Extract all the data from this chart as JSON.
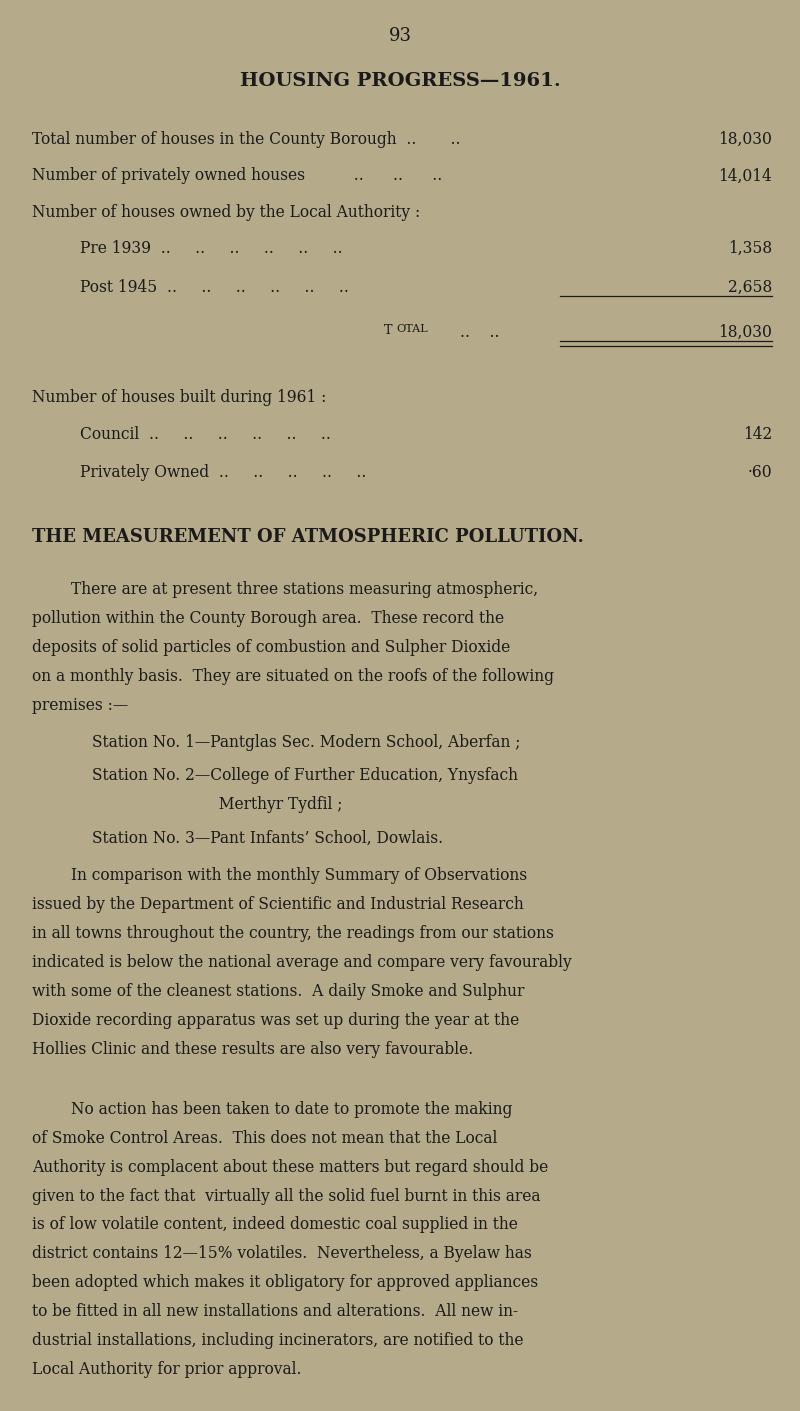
{
  "background_color": "#b5aa8a",
  "page_number": "93",
  "section1_title": "HOUSING PROGRESS—1961.",
  "section2_title": "THE MEASUREMENT OF ATMOSPHERIC POLLUTION.",
  "text_color": "#1a1a1a",
  "page_num_fontsize": 13,
  "section1_title_fontsize": 14,
  "section2_title_fontsize": 13,
  "body_fontsize": 11.2,
  "para1_lines": [
    "        There are at present three stations measuring atmospheric,",
    "pollution within the County Borough area.  These record the",
    "deposits of solid particles of combustion and Sulpher Dioxide",
    "on a monthly basis.  They are situated on the roofs of the following",
    "premises :—"
  ],
  "station1": "Station No. 1—Pantglas Sec. Modern School, Aberfan ;",
  "station2a": "Station No. 2—College of Further Education, Ynysfach",
  "station2b": "                          Merthyr Tydfil ;",
  "station3": "Station No. 3—Pant Infants’ School, Dowlais.",
  "para2_lines": [
    "        In comparison with the monthly Summary of Observations",
    "issued by the Department of Scientific and Industrial Research",
    "in all towns throughout the country, the readings from our stations",
    "indicated is below the national average and compare very favourably",
    "with some of the cleanest stations.  A daily Smoke and Sulphur",
    "Dioxide recording apparatus was set up during the year at the",
    "Hollies Clinic and these results are also very favourable."
  ],
  "para3_lines": [
    "        No action has been taken to date to promote the making",
    "of Smoke Control Areas.  This does not mean that the Local",
    "Authority is complacent about these matters but regard should be",
    "given to the fact that  virtually all the solid fuel burnt in this area",
    "is of low volatile content, indeed domestic coal supplied in the",
    "district contains 12—15% volatiles.  Nevertheless, a Byelaw has",
    "been adopted which makes it obligatory for approved appliances",
    "to be fitted in all new installations and alterations.  All new in-",
    "dustrial installations, including incinerators, are notified to the",
    "Local Authority for prior approval."
  ]
}
